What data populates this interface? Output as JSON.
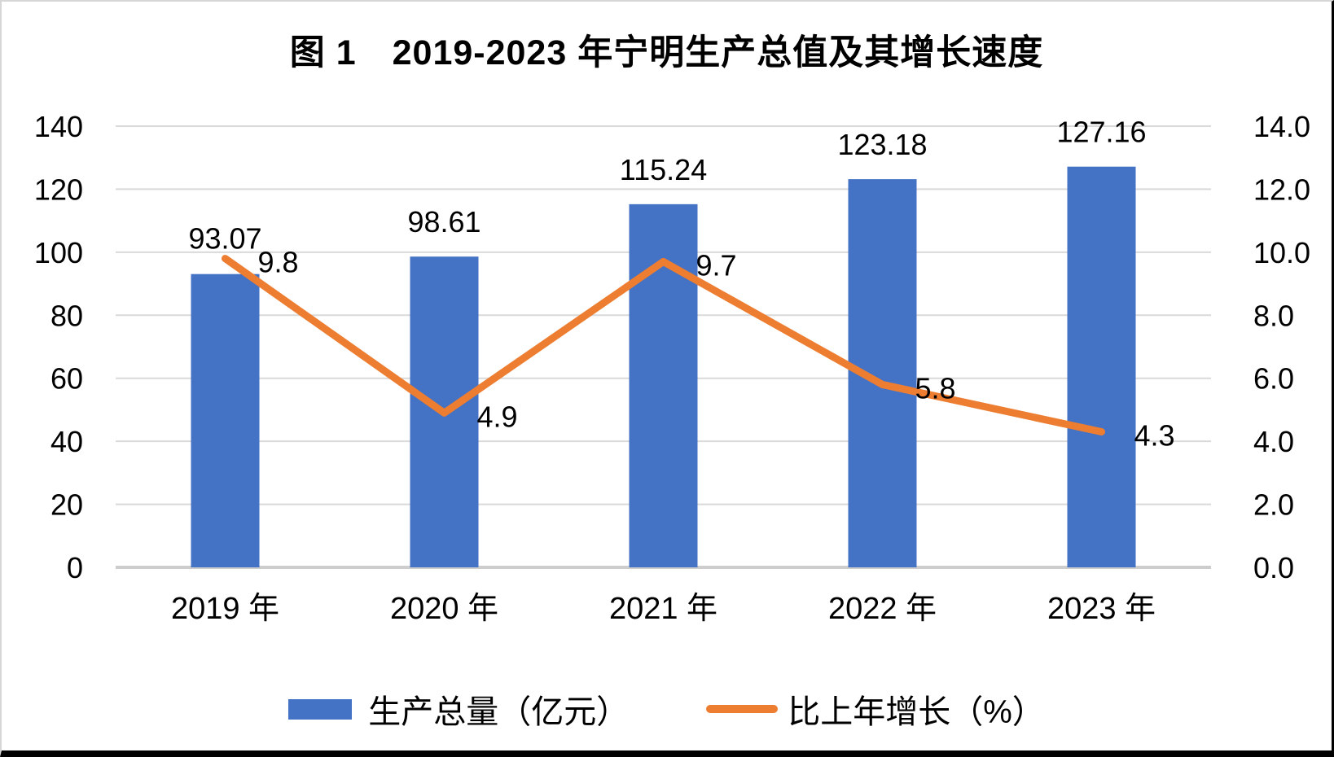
{
  "chart_data": {
    "type": "bar",
    "subtype": "combo-bar-line-dual-axis",
    "title": "图 1　2019-2023 年宁明生产总值及其增长速度",
    "categories": [
      "2019 年",
      "2020 年",
      "2021 年",
      "2022 年",
      "2023 年"
    ],
    "series": [
      {
        "name": "生产总量（亿元）",
        "type": "bar",
        "axis": "left",
        "color": "#4472C4",
        "values": [
          93.07,
          98.61,
          115.24,
          123.18,
          127.16
        ],
        "labels": [
          "93.07",
          "98.61",
          "115.24",
          "123.18",
          "127.16"
        ]
      },
      {
        "name": "比上年增长（%）",
        "type": "line",
        "axis": "right",
        "color": "#ED7D31",
        "values": [
          9.8,
          4.9,
          9.7,
          5.8,
          4.3
        ],
        "labels": [
          "9.8",
          "4.9",
          "9.7",
          "5.8",
          "4.3"
        ]
      }
    ],
    "left_axis": {
      "min": 0,
      "max": 140,
      "ticks": [
        "0",
        "20",
        "40",
        "60",
        "80",
        "100",
        "120",
        "140"
      ]
    },
    "right_axis": {
      "min": 0,
      "max": 14,
      "ticks": [
        "0.0",
        "2.0",
        "4.0",
        "6.0",
        "8.0",
        "10.0",
        "12.0",
        "14.0"
      ]
    },
    "grid": true,
    "legend_position": "bottom",
    "colors": {
      "grid": "#D9D9D9",
      "axis_line": "#CDCDCD",
      "text": "#000000",
      "background": "#FFFFFF"
    }
  }
}
